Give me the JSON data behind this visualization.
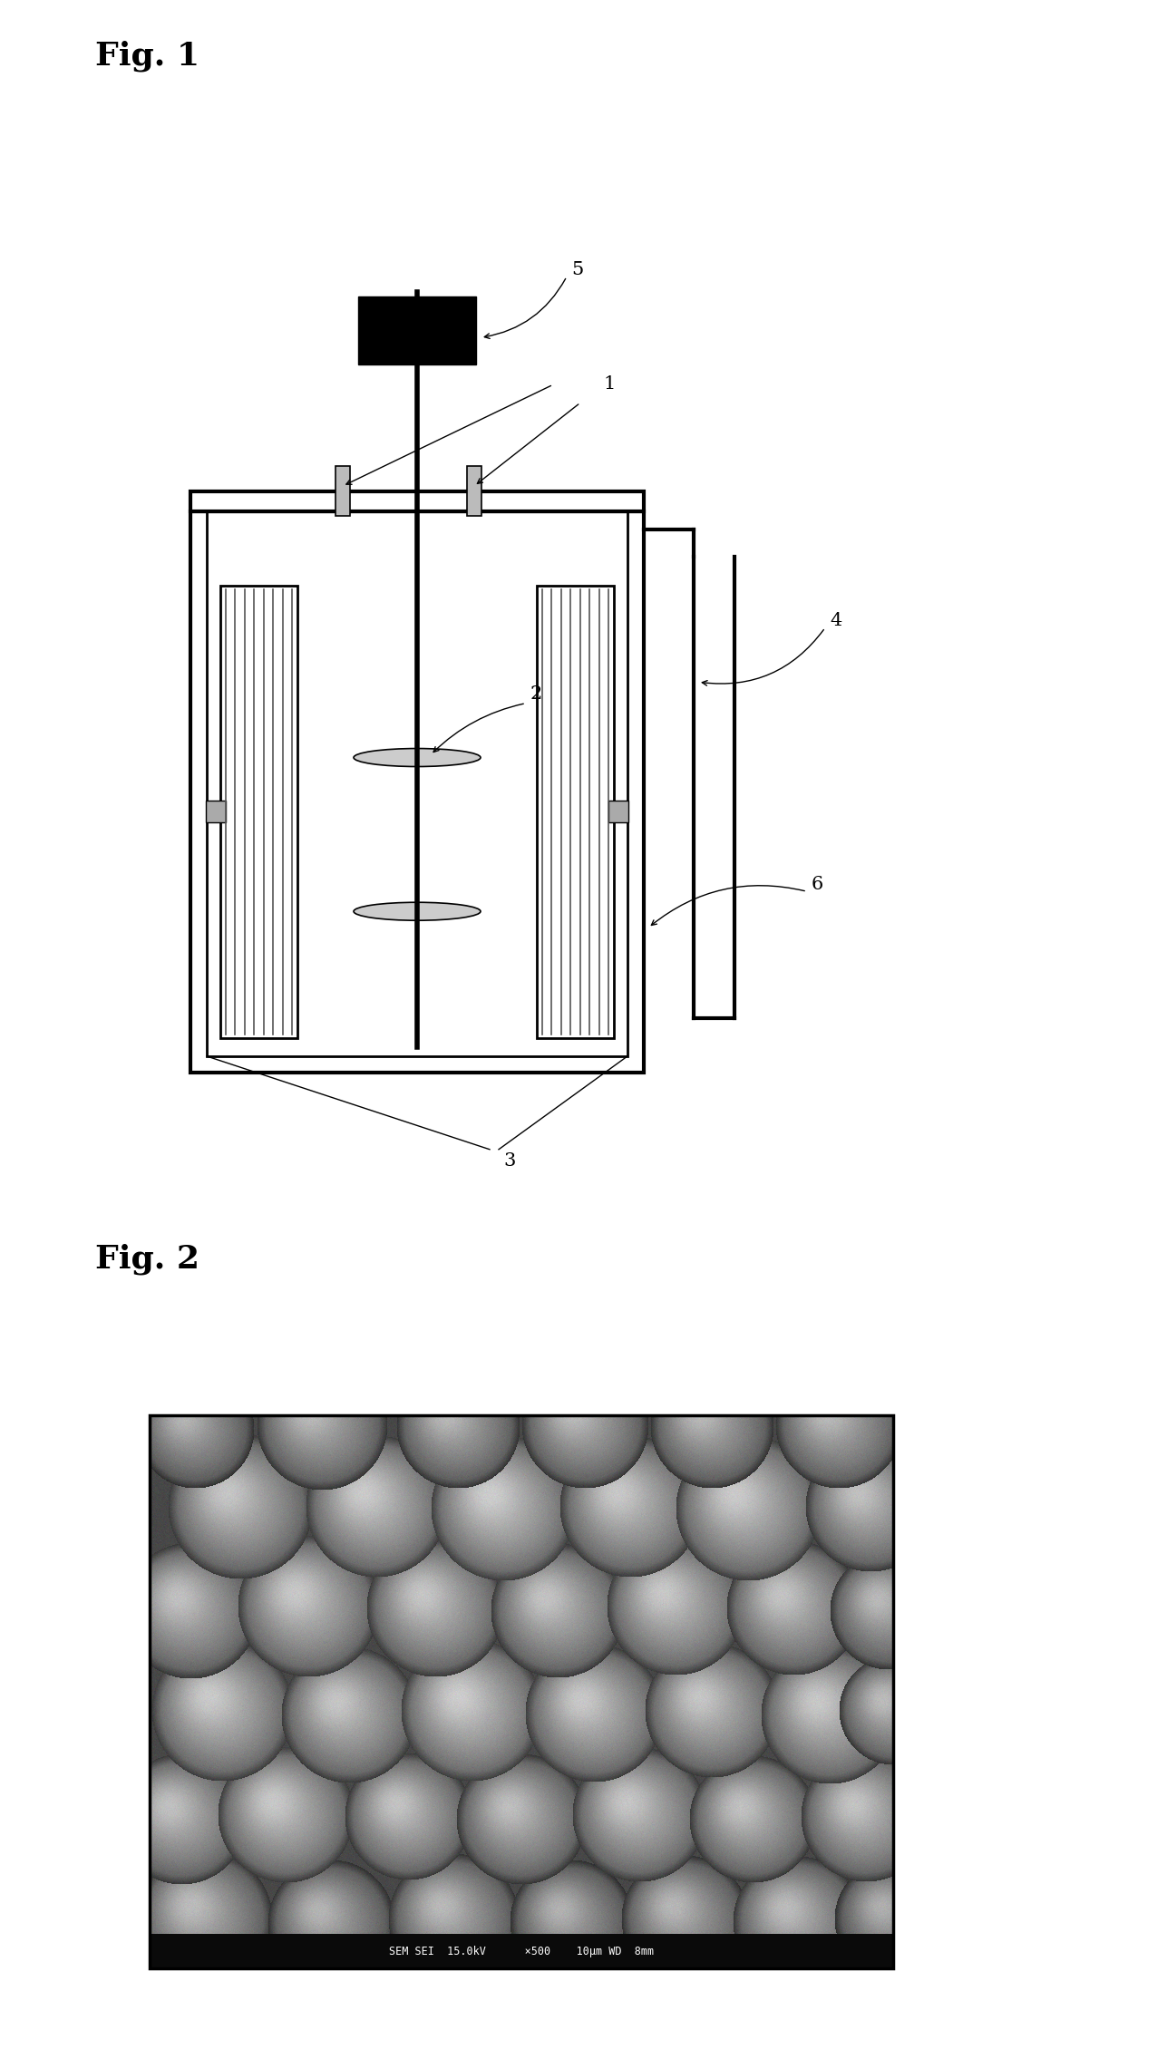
{
  "fig1_title": "Fig. 1",
  "fig2_title": "Fig. 2",
  "background_color": "#ffffff",
  "title_fontsize": 26,
  "label_fontsize": 15,
  "sem_text": "SEM SEI  15.0kV      ×500    10μm WD  8mm"
}
